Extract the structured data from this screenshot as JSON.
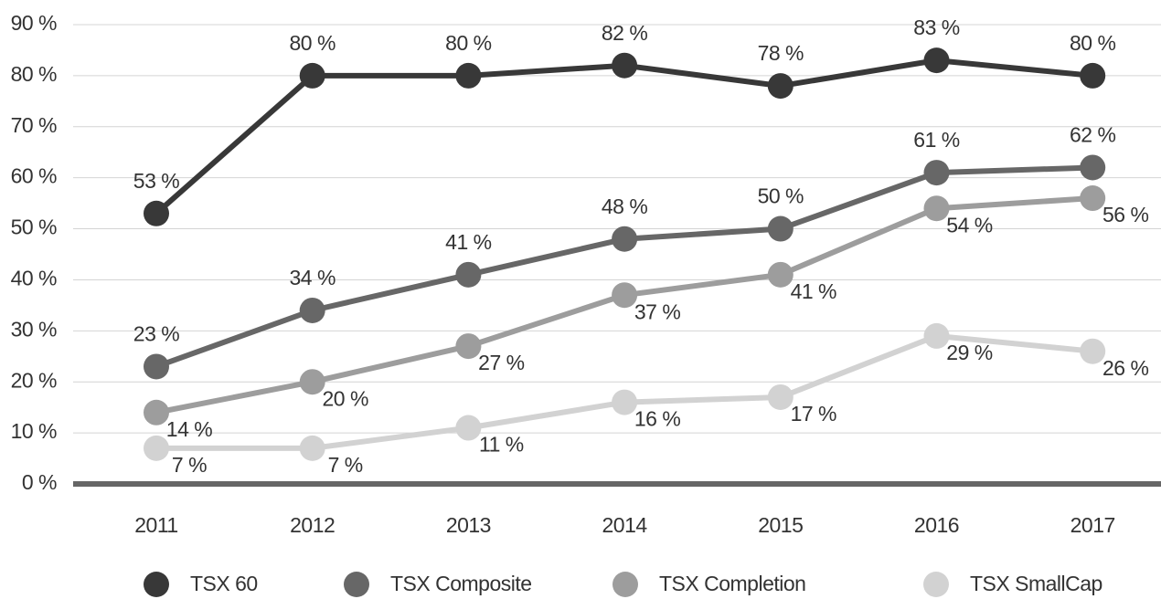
{
  "chart_data": {
    "type": "line",
    "categories": [
      "2011",
      "2012",
      "2013",
      "2014",
      "2015",
      "2016",
      "2017"
    ],
    "series": [
      {
        "name": "TSX 60",
        "color": "#383838",
        "values": [
          53,
          80,
          80,
          82,
          78,
          83,
          80
        ],
        "value_labels": [
          "53 %",
          "80 %",
          "80 %",
          "82 %",
          "78 %",
          "83 %",
          "80 %"
        ]
      },
      {
        "name": "TSX Composite",
        "color": "#676767",
        "values": [
          23,
          34,
          41,
          48,
          50,
          61,
          62
        ],
        "value_labels": [
          "23 %",
          "34 %",
          "41 %",
          "48 %",
          "50 %",
          "61 %",
          "62 %"
        ]
      },
      {
        "name": "TSX Completion",
        "color": "#9d9d9d",
        "values": [
          14,
          20,
          27,
          37,
          41,
          54,
          56
        ],
        "value_labels": [
          "14 %",
          "20 %",
          "27 %",
          "37 %",
          "41 %",
          "54 %",
          "56 %"
        ]
      },
      {
        "name": "TSX SmallCap",
        "color": "#d2d2d2",
        "values": [
          7,
          7,
          11,
          16,
          17,
          29,
          26
        ],
        "value_labels": [
          "7 %",
          "7 %",
          "11 %",
          "16 %",
          "17 %",
          "29 %",
          "26 %"
        ]
      }
    ],
    "ylim": [
      0,
      90
    ],
    "yticks": [
      {
        "value": 0,
        "label": "0 %"
      },
      {
        "value": 10,
        "label": "10 %"
      },
      {
        "value": 20,
        "label": "20 %"
      },
      {
        "value": 30,
        "label": "30 %"
      },
      {
        "value": 40,
        "label": "40 %"
      },
      {
        "value": 50,
        "label": "50 %"
      },
      {
        "value": 60,
        "label": "60 %"
      },
      {
        "value": 70,
        "label": "70 %"
      },
      {
        "value": 80,
        "label": "80 %"
      },
      {
        "value": 90,
        "label": "90 %"
      }
    ],
    "grid": true,
    "legend": "bottom"
  }
}
